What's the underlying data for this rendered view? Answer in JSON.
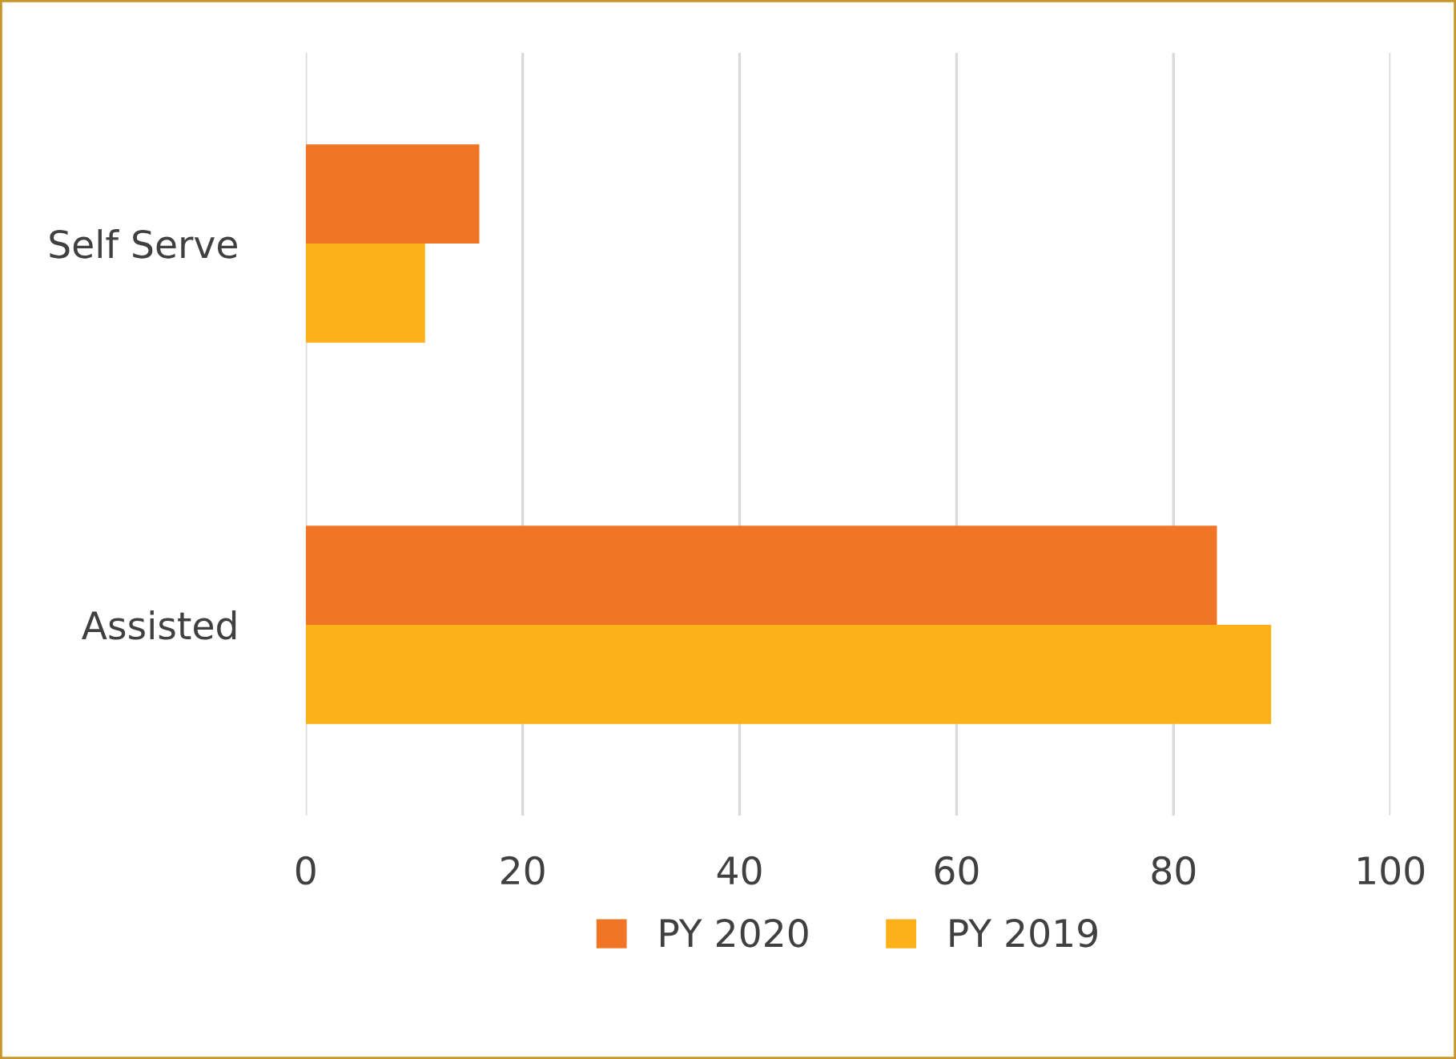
{
  "chart_data": {
    "type": "bar",
    "orientation": "horizontal",
    "categories": [
      "Self Serve",
      "Assisted"
    ],
    "series": [
      {
        "name": "PY 2020",
        "color": "#f07525",
        "values": [
          16,
          84
        ]
      },
      {
        "name": "PY 2019",
        "color": "#fbb117",
        "values": [
          11,
          89
        ]
      }
    ],
    "xlim": [
      0,
      100
    ],
    "xticks": [
      0,
      20,
      40,
      60,
      80,
      100
    ],
    "grid": "x",
    "legend": "bottom"
  }
}
